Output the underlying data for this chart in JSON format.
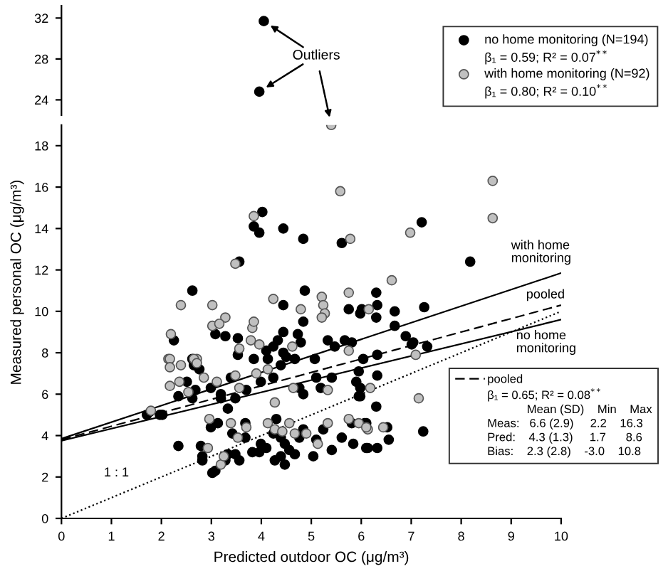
{
  "chart_data": [
    {
      "type": "scatter",
      "xlim": [
        0,
        10
      ],
      "ylim": [
        22.5,
        33.2
      ],
      "yticks": [
        24,
        28,
        32
      ],
      "tick_labels": "y",
      "grid": false,
      "marker": "circle",
      "series": [
        {
          "color": "#000000",
          "x": [
            4.05,
            3.96
          ],
          "values": [
            31.7,
            24.8
          ]
        }
      ]
    },
    {
      "type": "scatter",
      "xlabel": "Predicted outdoor OC (μg/m³)",
      "ylabel": "Measured personal OC (μg/m³)",
      "xlim": [
        0,
        10
      ],
      "ylim": [
        0,
        19
      ],
      "xticks": [
        0,
        1,
        2,
        3,
        4,
        5,
        6,
        7,
        8,
        9,
        10
      ],
      "yticks": [
        0,
        2,
        4,
        6,
        8,
        10,
        12,
        14,
        16,
        18
      ],
      "grid": false,
      "marker": "circle",
      "legend": "top right",
      "annotations": [
        "β₁ = 0.59; R² = 0.07$^{**}$",
        "β₁ = 0.80; R² = 0.10$^{**}$",
        "Outliers",
        "β₁ = 0.65; R² = 0.08$^{**}$",
        "            Mean (SD)    Min    Max",
        "Meas:   6.6 (2.9)     2.2    16.3",
        "Pred:    4.3 (1.3)     1.7      8.6",
        "Bias:    2.3 (2.8)    -3.0    10.8"
      ],
      "series": [
        {
          "name": "no home monitoring (N=194)",
          "color": "#000000",
          "x": [
            5.61,
            4.02,
            3.85,
            3.96,
            4.44,
            4.84,
            3.56,
            2.62,
            3.08,
            3.28,
            2.25,
            3.53,
            4.44,
            4.44,
            4.87,
            4.84,
            5.75,
            6.01,
            5.98,
            4.73,
            4.24,
            4.33,
            4.1,
            4.79,
            5.33,
            5.47,
            5.67,
            5.81,
            6.04,
            4.44,
            3.53,
            3.85,
            4.13,
            5.07,
            2.62,
            7.21,
            8.18,
            6.3,
            6.32,
            6.3,
            6.67,
            7.26,
            6.67,
            6.89,
            7.04,
            7.01,
            7.32,
            6.32,
            2.65,
            2.51,
            2.34,
            2.68,
            2.62,
            2.76,
            2.99,
            3.19,
            3.19,
            3.39,
            3.33,
            3.48,
            3.7,
            3.99,
            4.24,
            4.39,
            4.5,
            4.67,
            4.76,
            4.84,
            5.1,
            5.19,
            5.41,
            5.9,
            5.98,
            5.98,
            1.71,
            1.97,
            2.02,
            2.34,
            2.79,
            2.82,
            2.82,
            3.02,
            3.08,
            3.28,
            3.33,
            3.48,
            3.56,
            2.99,
            3.13,
            3.42,
            3.68,
            3.68,
            3.82,
            3.96,
            4.1,
            3.99,
            4.24,
            4.3,
            4.39,
            4.47,
            4.56,
            4.47,
            4.27,
            4.39,
            4.67,
            4.76,
            4.84,
            5.04,
            5.1,
            5.24,
            5.41,
            5.61,
            5.84,
            6.1,
            6.1,
            5.95,
            6.32,
            5.95,
            6.3,
            5.81,
            6.07,
            6.52,
            7.24,
            6.55,
            6.13,
            6.32
          ],
          "values": [
            13.3,
            14.8,
            14.1,
            13.8,
            14.0,
            13.5,
            12.4,
            11.0,
            8.9,
            8.8,
            8.6,
            8.7,
            9.0,
            10.3,
            11.0,
            9.5,
            10.1,
            10.1,
            9.9,
            8.9,
            8.3,
            8.6,
            8.1,
            8.5,
            8.6,
            8.3,
            8.6,
            8.5,
            7.7,
            8.0,
            7.9,
            7.7,
            7.7,
            7.7,
            7.7,
            14.3,
            12.4,
            10.9,
            10.3,
            9.7,
            10.0,
            10.2,
            9.3,
            8.8,
            8.5,
            8.4,
            8.3,
            7.9,
            7.4,
            6.6,
            5.9,
            6.2,
            5.8,
            7.2,
            6.3,
            6.0,
            5.8,
            6.8,
            5.3,
            5.8,
            6.2,
            6.6,
            6.8,
            7.4,
            7.8,
            7.7,
            6.3,
            6.0,
            6.8,
            6.3,
            6.8,
            6.6,
            6.3,
            5.9,
            5.0,
            5.0,
            5.0,
            3.5,
            3.5,
            3.0,
            2.8,
            2.2,
            2.3,
            2.8,
            3.1,
            3.1,
            2.8,
            4.4,
            4.6,
            4.1,
            4.6,
            3.9,
            3.2,
            3.2,
            3.4,
            3.6,
            4.1,
            4.8,
            3.9,
            3.6,
            3.3,
            2.6,
            2.8,
            3.0,
            3.1,
            3.9,
            4.3,
            3.0,
            3.8,
            4.3,
            3.3,
            3.9,
            3.6,
            4.6,
            3.4,
            7.1,
            6.9,
            5.9,
            5.4,
            4.6,
            4.6,
            4.4,
            4.2,
            3.8,
            3.4,
            3.4
          ]
        },
        {
          "name": "with home monitoring (N=92)",
          "color": "#c0c0c0",
          "x": [
            5.4,
            5.58,
            5.78,
            3.85,
            3.48,
            2.39,
            3.02,
            3.28,
            3.02,
            3.16,
            2.19,
            3.82,
            3.85,
            4.24,
            4.79,
            5.21,
            5.24,
            5.27,
            5.21,
            5.75,
            6.15,
            3.79,
            3.96,
            4.62,
            5.75,
            3.56,
            2.14,
            2.71,
            8.63,
            8.63,
            6.98,
            6.61,
            7.09,
            2.17,
            2.17,
            2.39,
            2.65,
            2.71,
            2.17,
            2.36,
            2.54,
            2.85,
            3.11,
            3.48,
            3.56,
            3.9,
            4.13,
            4.64,
            4.27,
            5.33,
            6.18,
            1.79,
            2.93,
            3.19,
            3.25,
            2.96,
            3.39,
            3.53,
            3.7,
            4.13,
            4.27,
            4.42,
            4.56,
            4.67,
            4.9,
            5.13,
            5.33,
            5.75,
            5.95,
            6.13,
            7.15,
            6.1,
            6.44
          ],
          "values": [
            19.0,
            15.8,
            13.5,
            14.6,
            12.3,
            10.3,
            10.3,
            9.7,
            9.3,
            9.4,
            8.9,
            9.2,
            9.5,
            10.6,
            10.1,
            10.7,
            10.3,
            9.9,
            9.7,
            10.9,
            10.1,
            8.6,
            8.4,
            8.3,
            8.1,
            8.2,
            7.7,
            7.7,
            16.3,
            14.5,
            13.8,
            11.5,
            7.9,
            7.7,
            7.3,
            7.4,
            7.7,
            7.5,
            6.4,
            6.6,
            6.1,
            6.8,
            6.6,
            6.9,
            6.3,
            7.0,
            7.2,
            6.3,
            5.6,
            6.2,
            6.3,
            5.2,
            3.4,
            2.6,
            3.0,
            4.8,
            4.6,
            3.9,
            4.4,
            4.6,
            4.3,
            4.2,
            4.6,
            4.1,
            4.1,
            3.6,
            4.6,
            4.8,
            4.6,
            4.3,
            5.8,
            4.4,
            4.4
          ]
        },
        {
          "type": "line",
          "name": "with home monitoring",
          "color": "#000000",
          "line_style": "solid",
          "marker": "none",
          "x": [
            0,
            10
          ],
          "values": [
            3.85,
            11.85
          ]
        },
        {
          "type": "line",
          "name": "pooled",
          "color": "#000000",
          "line_style": "dashed",
          "marker": "none",
          "x": [
            0,
            10
          ],
          "values": [
            3.8,
            10.3
          ]
        },
        {
          "type": "line",
          "name": "no home monitoring",
          "color": "#000000",
          "line_style": "solid",
          "marker": "none",
          "x": [
            0,
            10
          ],
          "values": [
            3.75,
            9.6
          ]
        },
        {
          "type": "line",
          "name": "1 : 1",
          "color": "#000000",
          "line_style": "dotted",
          "marker": "none",
          "x": [
            0,
            10
          ],
          "values": [
            0,
            10
          ]
        }
      ]
    }
  ]
}
